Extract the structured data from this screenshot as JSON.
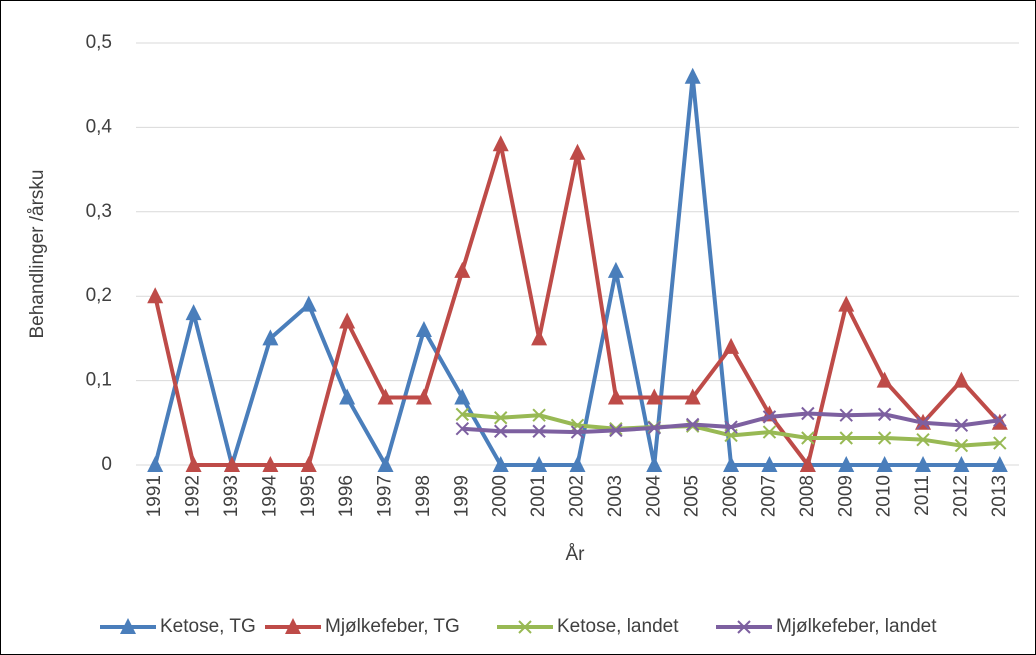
{
  "chart_data": {
    "type": "line",
    "x_label": "År",
    "y_label": "Behandlinger /årsku",
    "categories": [
      "1991",
      "1992",
      "1993",
      "1994",
      "1995",
      "1996",
      "1997",
      "1998",
      "1999",
      "2000",
      "2001",
      "2002",
      "2003",
      "2004",
      "2005",
      "2006",
      "2007",
      "2008",
      "2009",
      "2010",
      "2011",
      "2012",
      "2013"
    ],
    "ylim": [
      0,
      0.5
    ],
    "yticks": [
      0,
      {
        "value": 0.1,
        "label": "0,1"
      },
      {
        "value": 0.2,
        "label": "0,2"
      },
      {
        "value": 0.3,
        "label": "0,3"
      },
      {
        "value": 0.4,
        "label": "0,4"
      },
      {
        "value": 0.5,
        "label": "0,5"
      }
    ],
    "grid": true,
    "legend": "bottom",
    "series": [
      {
        "name": "Ketose, TG",
        "color": "#4a7ebb",
        "marker": "triangle",
        "values": [
          0,
          0.18,
          0,
          0.15,
          0.19,
          0.08,
          0,
          0.16,
          0.08,
          0,
          0,
          0,
          0.23,
          0,
          0.46,
          0,
          0,
          0,
          0,
          0,
          0,
          0,
          0
        ]
      },
      {
        "name": "Mjølkefeber, TG",
        "color": "#be4b48",
        "marker": "triangle",
        "values": [
          0.2,
          0,
          0,
          0,
          0,
          0.17,
          0.08,
          0.08,
          0.23,
          0.38,
          0.15,
          0.37,
          0.08,
          0.08,
          0.08,
          0.14,
          0.06,
          0,
          0.19,
          0.1,
          0.05,
          0.1,
          0.05
        ]
      },
      {
        "name": "Ketose, landet",
        "color": "#98b954",
        "marker": "x",
        "values": [
          null,
          null,
          null,
          null,
          null,
          null,
          null,
          null,
          0.06,
          0.056,
          0.059,
          0.047,
          0.043,
          0.045,
          0.046,
          0.035,
          0.039,
          0.032,
          0.032,
          0.032,
          0.03,
          0.023,
          0.026
        ]
      },
      {
        "name": "Mjølkefeber, landet",
        "color": "#7d60a0",
        "marker": "x",
        "values": [
          null,
          null,
          null,
          null,
          null,
          null,
          null,
          null,
          0.043,
          0.04,
          0.04,
          0.039,
          0.041,
          0.044,
          0.048,
          0.045,
          0.057,
          0.061,
          0.059,
          0.06,
          0.05,
          0.047,
          0.053
        ]
      }
    ]
  }
}
